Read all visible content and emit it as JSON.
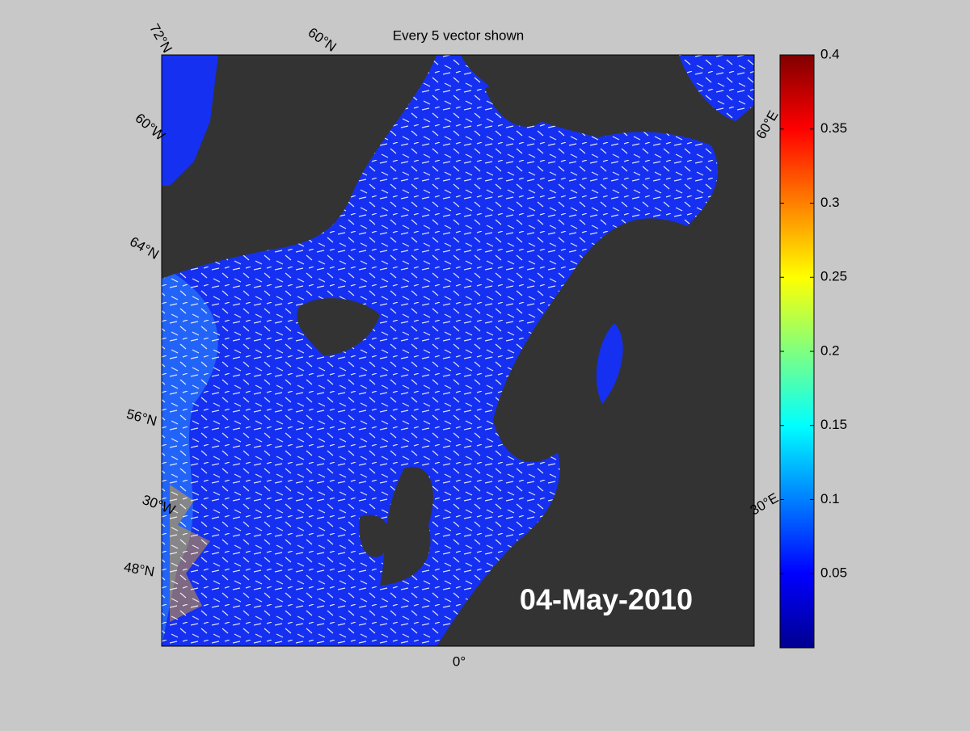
{
  "title": "Every 5 vector shown",
  "date": "04-May-2010",
  "graticule_labels": [
    "72°N",
    "60°N",
    "60°W",
    "64°N",
    "56°N",
    "30°W",
    "48°N",
    "0°",
    "60°E",
    "30°E"
  ],
  "colorbar": {
    "colormap": "jet",
    "lim": [
      0,
      0.4
    ],
    "ticks": [
      0.05,
      0.1,
      0.15,
      0.2,
      0.25,
      0.3,
      0.35,
      0.4
    ]
  }
}
